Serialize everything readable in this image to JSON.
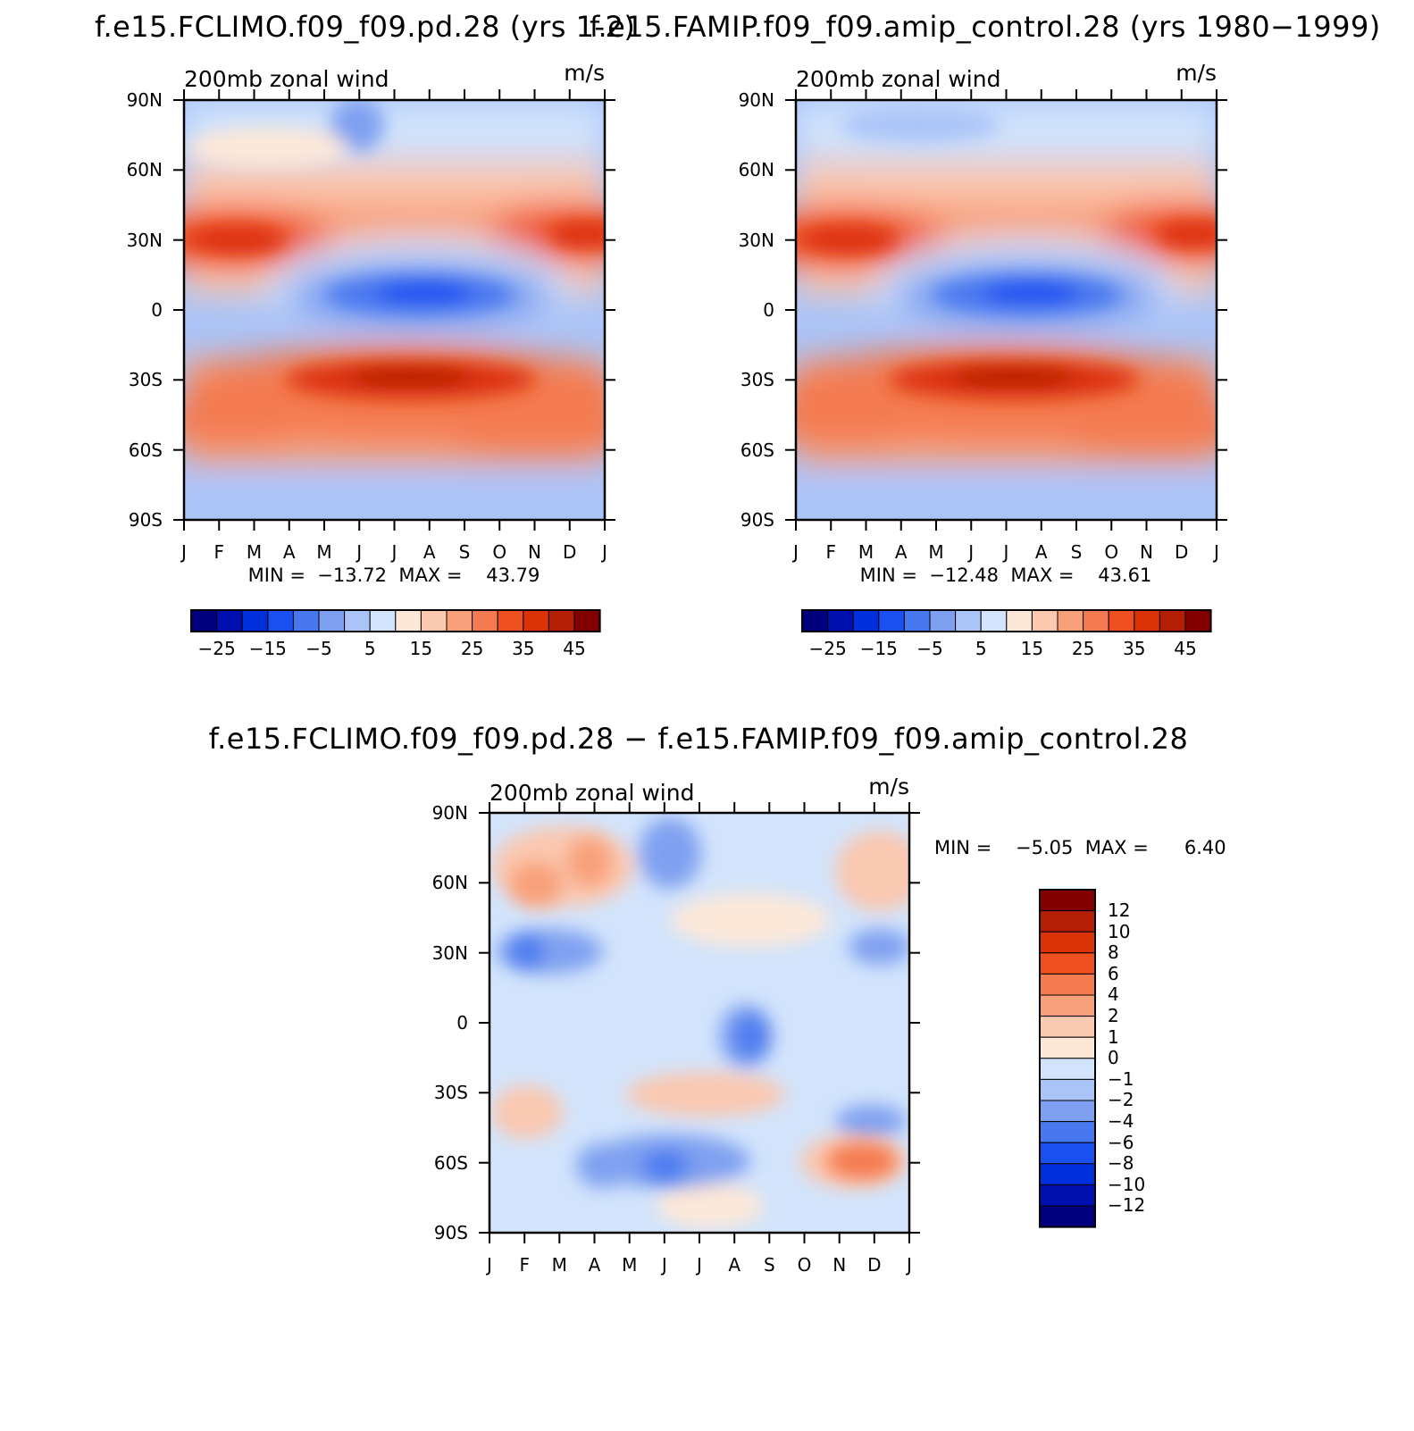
{
  "panels": [
    {
      "id": "climo",
      "title": "f.e15.FCLIMO.f09_f09.pd.28 (yrs 1-2)",
      "subtitle_left": "200mb zonal wind",
      "subtitle_right": "m/s",
      "stats_text": "MIN =  −13.72  MAX =    43.79",
      "xticks": [
        "J",
        "F",
        "M",
        "A",
        "M",
        "J",
        "J",
        "A",
        "S",
        "O",
        "N",
        "D",
        "J"
      ],
      "yticks": [
        "90N",
        "60N",
        "30N",
        "0",
        "30S",
        "60S",
        "90S"
      ],
      "colorbar_labels": [
        "−25",
        "−15",
        "−5",
        "5",
        "15",
        "25",
        "35",
        "45"
      ]
    },
    {
      "id": "amip",
      "title": "f.e15.FAMIP.f09_f09.amip_control.28 (yrs 1980−1999)",
      "subtitle_left": "200mb zonal wind",
      "subtitle_right": "m/s",
      "stats_text": "MIN =  −12.48  MAX =    43.61",
      "xticks": [
        "J",
        "F",
        "M",
        "A",
        "M",
        "J",
        "J",
        "A",
        "S",
        "O",
        "N",
        "D",
        "J"
      ],
      "yticks": [
        "90N",
        "60N",
        "30N",
        "0",
        "30S",
        "60S",
        "90S"
      ],
      "colorbar_labels": [
        "−25",
        "−15",
        "−5",
        "5",
        "15",
        "25",
        "35",
        "45"
      ]
    },
    {
      "id": "diff",
      "title": "f.e15.FCLIMO.f09_f09.pd.28 − f.e15.FAMIP.f09_f09.amip_control.28",
      "subtitle_left": "200mb zonal wind",
      "subtitle_right": "m/s",
      "stats_text": "MIN =    −5.05  MAX =      6.40",
      "xticks": [
        "J",
        "F",
        "M",
        "A",
        "M",
        "J",
        "J",
        "A",
        "S",
        "O",
        "N",
        "D",
        "J"
      ],
      "yticks": [
        "90N",
        "60N",
        "30N",
        "0",
        "30S",
        "60S",
        "90S"
      ],
      "colorbar_labels": [
        "12",
        "10",
        "8",
        "6",
        "4",
        "2",
        "1",
        "0",
        "−1",
        "−2",
        "−4",
        "−6",
        "−8",
        "−10",
        "−12"
      ]
    }
  ],
  "chart_data": [
    {
      "type": "heatmap",
      "title": "f.e15.FCLIMO.f09_f09.pd.28 (yrs 1-2)",
      "variable": "200mb zonal wind",
      "units": "m/s",
      "x": [
        "J",
        "F",
        "M",
        "A",
        "M",
        "J",
        "J",
        "A",
        "S",
        "O",
        "N",
        "D",
        "J"
      ],
      "y": [
        "90N",
        "60N",
        "30N",
        "0",
        "30S",
        "60S",
        "90S"
      ],
      "xlim": [
        0,
        12
      ],
      "ylim": [
        -90,
        90
      ],
      "min": -13.72,
      "max": 43.79,
      "levels": [
        -30,
        -25,
        -20,
        -15,
        -10,
        -5,
        0,
        5,
        10,
        15,
        20,
        25,
        30,
        35,
        40,
        45
      ],
      "colors": [
        "#00007f",
        "#0010b0",
        "#0030dc",
        "#1a50f0",
        "#4878f0",
        "#7fa0f0",
        "#aac4f8",
        "#d2e4fc",
        "#fde8d8",
        "#fbc8b0",
        "#f8a07a",
        "#f47a50",
        "#f05020",
        "#dc3208",
        "#b41e04",
        "#820000"
      ],
      "key_features": {
        "nh_jet_core": {
          "lat": 30,
          "month": "Jan",
          "value": 38
        },
        "sh_jet_core": {
          "lat": -30,
          "month": "Jul",
          "value": 43
        },
        "tropical_easterlies": {
          "lat": 8,
          "month": "Jul",
          "value": -13
        }
      }
    },
    {
      "type": "heatmap",
      "title": "f.e15.FAMIP.f09_f09.amip_control.28 (yrs 1980−1999)",
      "variable": "200mb zonal wind",
      "units": "m/s",
      "x": [
        "J",
        "F",
        "M",
        "A",
        "M",
        "J",
        "J",
        "A",
        "S",
        "O",
        "N",
        "D",
        "J"
      ],
      "y": [
        "90N",
        "60N",
        "30N",
        "0",
        "30S",
        "60S",
        "90S"
      ],
      "xlim": [
        0,
        12
      ],
      "ylim": [
        -90,
        90
      ],
      "min": -12.48,
      "max": 43.61,
      "levels": [
        -30,
        -25,
        -20,
        -15,
        -10,
        -5,
        0,
        5,
        10,
        15,
        20,
        25,
        30,
        35,
        40,
        45
      ],
      "colors": [
        "#00007f",
        "#0010b0",
        "#0030dc",
        "#1a50f0",
        "#4878f0",
        "#7fa0f0",
        "#aac4f8",
        "#d2e4fc",
        "#fde8d8",
        "#fbc8b0",
        "#f8a07a",
        "#f47a50",
        "#f05020",
        "#dc3208",
        "#b41e04",
        "#820000"
      ],
      "key_features": {
        "nh_jet_core": {
          "lat": 30,
          "month": "Jan",
          "value": 38
        },
        "sh_jet_core": {
          "lat": -30,
          "month": "Jul",
          "value": 42
        },
        "tropical_easterlies": {
          "lat": 7,
          "month": "Jul",
          "value": -12
        }
      }
    },
    {
      "type": "heatmap",
      "title": "f.e15.FCLIMO.f09_f09.pd.28 − f.e15.FAMIP.f09_f09.amip_control.28",
      "variable": "200mb zonal wind",
      "units": "m/s",
      "x": [
        "J",
        "F",
        "M",
        "A",
        "M",
        "J",
        "J",
        "A",
        "S",
        "O",
        "N",
        "D",
        "J"
      ],
      "y": [
        "90N",
        "60N",
        "30N",
        "0",
        "30S",
        "60S",
        "90S"
      ],
      "xlim": [
        0,
        12
      ],
      "ylim": [
        -90,
        90
      ],
      "min": -5.05,
      "max": 6.4,
      "levels": [
        -12,
        -10,
        -8,
        -6,
        -4,
        -2,
        -1,
        0,
        1,
        2,
        4,
        6,
        8,
        10,
        12
      ],
      "colors": [
        "#00007f",
        "#0010b0",
        "#0030dc",
        "#1a50f0",
        "#4878f0",
        "#7fa0f0",
        "#aac4f8",
        "#d2e4fc",
        "#fde8d8",
        "#fbc8b0",
        "#f8a07a",
        "#f47a50",
        "#f05020",
        "#dc3208",
        "#b41e04",
        "#820000"
      ]
    }
  ]
}
